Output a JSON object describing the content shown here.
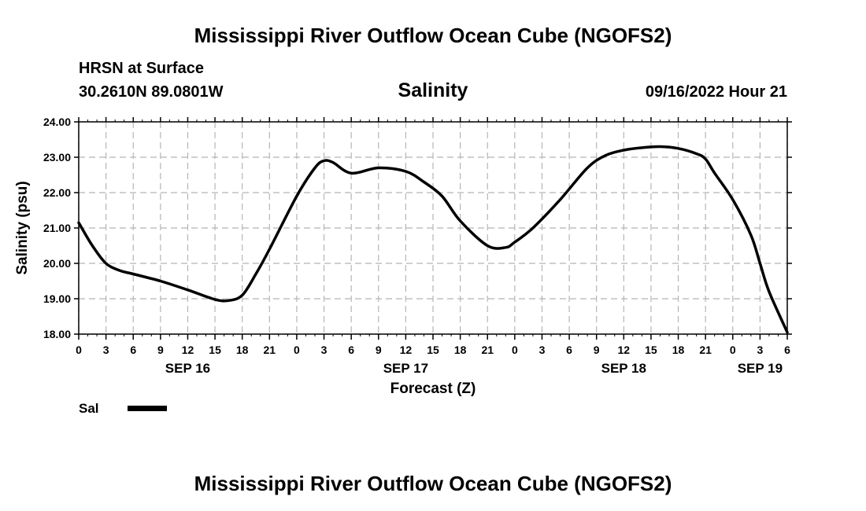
{
  "header": {
    "title": "Mississippi River Outflow Ocean Cube (NGOFS2)",
    "footer_title": "Mississippi River Outflow Ocean Cube (NGOFS2)",
    "station": "HRSN at Surface",
    "coords": "30.2610N  89.0801W",
    "timestamp": "09/16/2022 Hour 21"
  },
  "legend": {
    "series_label": "Sal"
  },
  "chart_data": {
    "type": "line",
    "title": "Salinity",
    "xlabel": "Forecast (Z)",
    "ylabel": "Salinity (psu)",
    "ylim": [
      18.0,
      24.0
    ],
    "xlim_hours": [
      0,
      78
    ],
    "yticks": [
      "18.00",
      "19.00",
      "20.00",
      "21.00",
      "22.00",
      "23.00",
      "24.00"
    ],
    "xticks": [
      "0",
      "3",
      "6",
      "9",
      "12",
      "15",
      "18",
      "21",
      "0",
      "3",
      "6",
      "9",
      "12",
      "15",
      "18",
      "21",
      "0",
      "3",
      "6",
      "9",
      "12",
      "15",
      "18",
      "21",
      "0",
      "3",
      "6"
    ],
    "xtick_step_hours": 3,
    "date_labels": [
      {
        "label": "SEP 16",
        "hour": 12
      },
      {
        "label": "SEP 17",
        "hour": 36
      },
      {
        "label": "SEP 18",
        "hour": 60
      },
      {
        "label": "SEP 19",
        "hour": 75
      }
    ],
    "grid": true,
    "series": [
      {
        "name": "Sal",
        "color": "#000000",
        "x_hours": [
          0,
          1.5,
          3,
          4.5,
          6,
          9,
          12,
          15,
          16.5,
          18,
          19.5,
          21,
          24,
          26,
          27,
          28,
          30,
          33,
          36,
          38,
          40,
          42,
          45,
          47,
          48,
          50,
          53,
          56,
          58,
          60,
          62,
          64,
          66,
          68,
          69,
          70,
          72,
          74,
          75,
          76,
          78
        ],
        "values": [
          21.15,
          20.5,
          20.0,
          19.8,
          19.7,
          19.5,
          19.25,
          18.98,
          18.95,
          19.1,
          19.7,
          20.4,
          21.9,
          22.7,
          22.9,
          22.85,
          22.55,
          22.7,
          22.6,
          22.3,
          21.9,
          21.2,
          20.5,
          20.45,
          20.6,
          21.0,
          21.8,
          22.7,
          23.05,
          23.2,
          23.27,
          23.3,
          23.25,
          23.1,
          22.95,
          22.55,
          21.8,
          20.8,
          20.0,
          19.2,
          18.05
        ]
      }
    ]
  }
}
